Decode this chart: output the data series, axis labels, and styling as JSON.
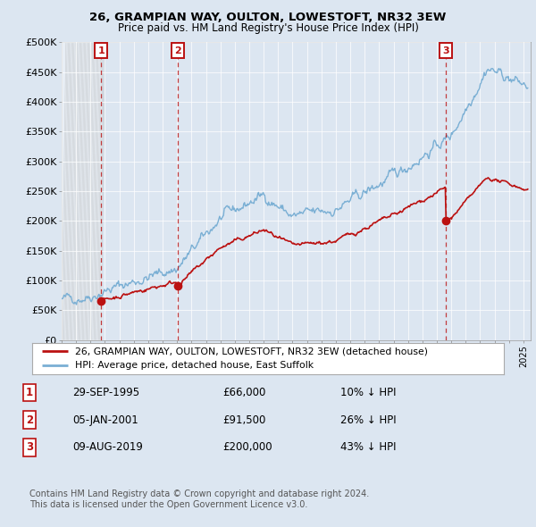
{
  "title": "26, GRAMPIAN WAY, OULTON, LOWESTOFT, NR32 3EW",
  "subtitle": "Price paid vs. HM Land Registry's House Price Index (HPI)",
  "ylim": [
    0,
    500000
  ],
  "xlim": [
    1993.0,
    2025.5
  ],
  "yticks": [
    0,
    50000,
    100000,
    150000,
    200000,
    250000,
    300000,
    350000,
    400000,
    450000,
    500000
  ],
  "ytick_labels": [
    "£0",
    "£50K",
    "£100K",
    "£150K",
    "£200K",
    "£250K",
    "£300K",
    "£350K",
    "£400K",
    "£450K",
    "£500K"
  ],
  "hpi_color": "#7aafd4",
  "price_color": "#bb1111",
  "bg_color": "#dce6f1",
  "hatch_bg": "#e8e8e8",
  "grid_color": "#c8d4e8",
  "legend_label_price": "26, GRAMPIAN WAY, OULTON, LOWESTOFT, NR32 3EW (detached house)",
  "legend_label_hpi": "HPI: Average price, detached house, East Suffolk",
  "transactions": [
    {
      "num": 1,
      "date_str": "29-SEP-1995",
      "price": 66000,
      "year": 1995.75,
      "pct_text": "10% ↓ HPI"
    },
    {
      "num": 2,
      "date_str": "05-JAN-2001",
      "price": 91500,
      "year": 2001.02,
      "pct_text": "26% ↓ HPI"
    },
    {
      "num": 3,
      "date_str": "09-AUG-2019",
      "price": 200000,
      "year": 2019.6,
      "pct_text": "43% ↓ HPI"
    }
  ],
  "footer1": "Contains HM Land Registry data © Crown copyright and database right 2024.",
  "footer2": "This data is licensed under the Open Government Licence v3.0."
}
